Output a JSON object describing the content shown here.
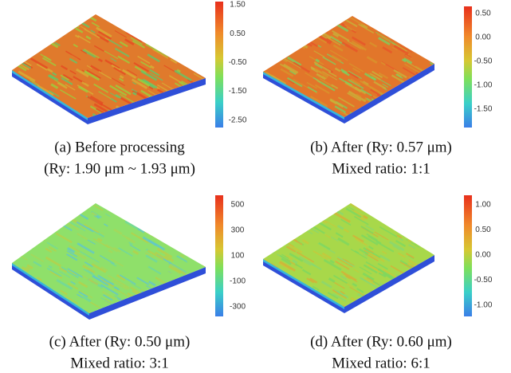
{
  "panels": [
    {
      "colorbar_labels": [
        "1.50",
        "0.50",
        "-0.50",
        "-1.50",
        "-2.50"
      ],
      "caption": [
        "(a) Before processing",
        "(Ry: 1.90 μm ~ 1.93 μm)"
      ]
    },
    {
      "colorbar_labels": [
        "0.50",
        "0.00",
        "-0.50",
        "-1.00",
        "-1.50"
      ],
      "caption": [
        "(b) After (Ry: 0.57 μm)",
        "Mixed ratio: 1:1"
      ]
    },
    {
      "colorbar_labels": [
        "500",
        "300",
        "100",
        "-100",
        "-300"
      ],
      "caption": [
        "(c) After (Ry: 0.50 μm)",
        "Mixed ratio: 3:1"
      ]
    },
    {
      "colorbar_labels": [
        "1.00",
        "0.50",
        "0.00",
        "-0.50",
        "-1.00"
      ],
      "caption": [
        "(d) After (Ry: 0.60 μm)",
        "Mixed ratio: 6:1"
      ]
    }
  ]
}
